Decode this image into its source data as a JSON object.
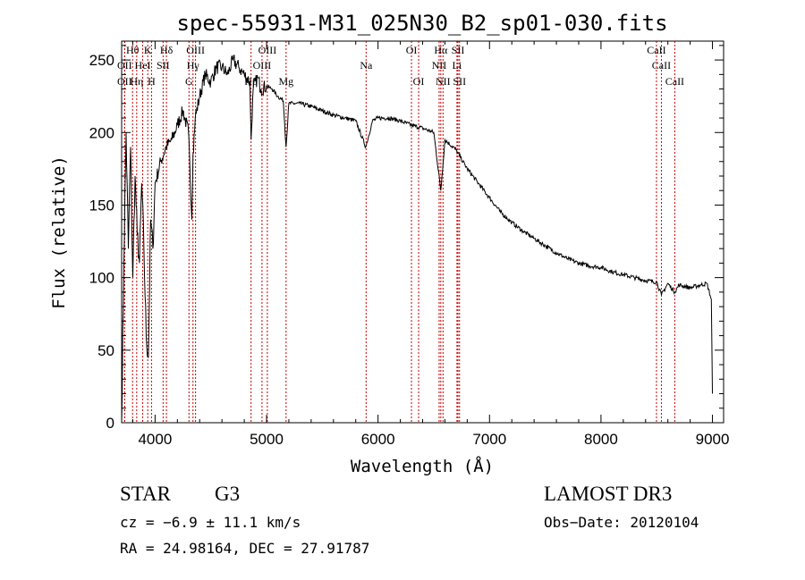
{
  "chart_data": {
    "type": "line",
    "title": "spec-55931-M31_025N30_B2_sp01-030.fits",
    "xlabel": "Wavelength (Å)",
    "ylabel": "Flux (relative)",
    "xlim": [
      3700,
      9100
    ],
    "ylim": [
      0,
      263
    ],
    "xticks": [
      4000,
      5000,
      6000,
      7000,
      8000,
      9000
    ],
    "yticks": [
      0,
      50,
      100,
      150,
      200,
      250
    ],
    "series": [
      {
        "name": "spectrum",
        "x": [
          3700,
          3720,
          3740,
          3760,
          3780,
          3800,
          3820,
          3840,
          3860,
          3880,
          3900,
          3920,
          3940,
          3960,
          3980,
          4000,
          4050,
          4100,
          4150,
          4200,
          4250,
          4300,
          4330,
          4340,
          4360,
          4400,
          4450,
          4500,
          4550,
          4600,
          4650,
          4700,
          4750,
          4800,
          4850,
          4861,
          4880,
          4920,
          4950,
          5000,
          5050,
          5100,
          5150,
          5175,
          5200,
          5250,
          5300,
          5400,
          5500,
          5600,
          5700,
          5800,
          5890,
          5950,
          6000,
          6100,
          6200,
          6300,
          6400,
          6500,
          6563,
          6600,
          6700,
          6800,
          6900,
          7000,
          7100,
          7200,
          7300,
          7400,
          7500,
          7600,
          7700,
          7800,
          7900,
          8000,
          8100,
          8200,
          8300,
          8400,
          8500,
          8542,
          8600,
          8662,
          8700,
          8800,
          8900,
          8950,
          8990,
          9000
        ],
        "values": [
          0,
          110,
          200,
          120,
          190,
          100,
          170,
          130,
          110,
          165,
          120,
          60,
          45,
          140,
          120,
          165,
          180,
          190,
          195,
          205,
          215,
          200,
          140,
          185,
          210,
          225,
          240,
          235,
          245,
          245,
          240,
          250,
          245,
          240,
          235,
          195,
          230,
          238,
          230,
          232,
          230,
          225,
          222,
          190,
          220,
          220,
          220,
          218,
          215,
          212,
          210,
          208,
          190,
          208,
          210,
          210,
          208,
          205,
          203,
          200,
          160,
          195,
          188,
          175,
          165,
          155,
          145,
          138,
          132,
          127,
          122,
          117,
          113,
          110,
          108,
          107,
          104,
          102,
          100,
          98,
          97,
          88,
          96,
          90,
          95,
          93,
          95,
          96,
          85,
          20
        ]
      }
    ],
    "line_markers": [
      {
        "row": 1,
        "labels": [
          "Hθ",
          "K",
          "Hδ",
          "OIII",
          "OIII",
          "OI",
          "Hα",
          "SII",
          "CaII"
        ],
        "x": [
          3798,
          3934,
          4102,
          4363,
          5007,
          6300,
          6563,
          6717,
          8498
        ]
      },
      {
        "row": 2,
        "labels": [
          "OII",
          "HeI",
          "SII",
          "Hγ",
          "OIII",
          "Na",
          "NII",
          "Li",
          "CaII"
        ],
        "x": [
          3727,
          3889,
          4072,
          4340,
          4959,
          5893,
          6548,
          6708,
          8542
        ]
      },
      {
        "row": 3,
        "labels": [
          "OII",
          "Hη",
          "H",
          "G",
          "Hβ",
          "Mg",
          "OI",
          "NII",
          "SII",
          "CaII"
        ],
        "x": [
          3727,
          3835,
          3968,
          4304,
          4861,
          5175,
          6364,
          6583,
          6731,
          8662
        ]
      }
    ]
  },
  "info": {
    "object_class": "STAR",
    "subclass": "G3",
    "survey": "LAMOST DR3",
    "cz": "cz = −6.9 ± 11.1 km/s",
    "obs_date": "Obs−Date: 20120104",
    "coords": "RA =  24.98164, DEC =  27.91787"
  }
}
